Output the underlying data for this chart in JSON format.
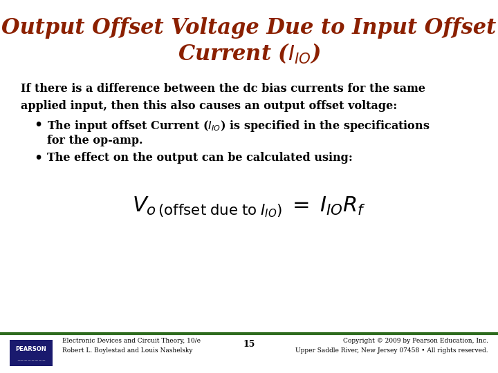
{
  "title_line1": "Output Offset Voltage Due to Input Offset",
  "title_line2": "Current (I$_{IO}$)",
  "title_color": "#8B2000",
  "bg_color": "#FFFFFF",
  "body_text": "If there is a difference between the dc bias currents for the same\napplied input, then this also causes an output offset voltage:",
  "bullet1a": "The input offset Current (I$_{IO}$) is specified in the specifications",
  "bullet1b": "for the op-amp.",
  "bullet2": "The effect on the output can be calculated using:",
  "footer_left1": "Electronic Devices and Circuit Theory, 10/e",
  "footer_left2": "Robert L. Boylestad and Louis Nashelsky",
  "footer_center": "15",
  "footer_right1": "Copyright © 2009 by Pearson Education, Inc.",
  "footer_right2": "Upper Saddle River, New Jersey 07458 • All rights reserved.",
  "footer_bar_color": "#2E6B1E",
  "pearson_box_color": "#1a1a6e",
  "text_color": "#000000",
  "title_fontsize": 22,
  "body_fontsize": 11.5,
  "bullet_fontsize": 11.5,
  "footer_fontsize": 6.5,
  "formula_fontsize": 18
}
